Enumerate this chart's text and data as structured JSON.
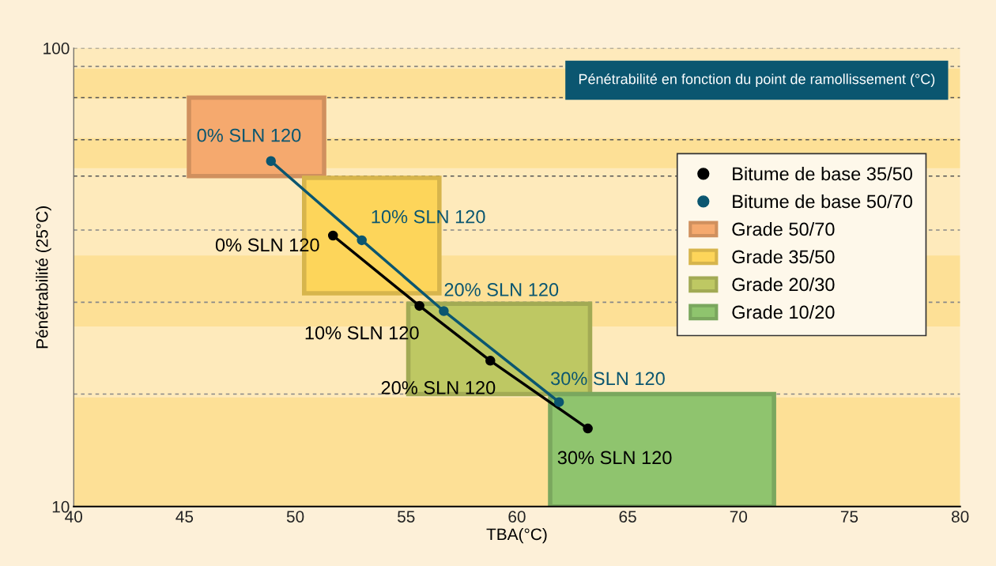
{
  "chart_data": {
    "type": "line",
    "title": "Pénétrabilité en fonction du point de ramollissement (°C)",
    "xlabel": "TBA(°C)",
    "ylabel": "Pénétrabilité (25°C)",
    "log": "y",
    "xlim": [
      40,
      80
    ],
    "xticks": [
      40,
      45,
      50,
      55,
      60,
      65,
      70,
      75,
      80
    ],
    "ylim": [
      10,
      100
    ],
    "yticks": [
      10,
      100
    ],
    "grid": false,
    "legend": "top right",
    "line_style": "solid",
    "series": [
      {
        "type": "area",
        "name": "Grade 50/70",
        "color": "#f5a96e",
        "x": [
          45.2,
          45.2,
          51.3,
          51.3,
          45.2
        ],
        "values": [
          52.6,
          78,
          78,
          52.6,
          52.6
        ]
      },
      {
        "type": "area",
        "name": "Grade 35/50",
        "color": "#fdd55a",
        "x": [
          50.4,
          50.4,
          56.5,
          56.5,
          50.4
        ],
        "values": [
          29.2,
          52.1,
          52.1,
          29.2,
          29.2
        ]
      },
      {
        "type": "area",
        "name": "Grade 20/30",
        "color": "#bec863",
        "x": [
          55.1,
          55.1,
          63.3,
          63.3,
          55.1
        ],
        "values": [
          17.6,
          27.7,
          27.7,
          17.6,
          17.6
        ]
      },
      {
        "type": "area",
        "name": "Grade 10/20",
        "color": "#8fc46e",
        "x": [
          61.5,
          61.5,
          71.6,
          71.6,
          61.5
        ],
        "values": [
          10,
          17.6,
          17.6,
          10,
          10
        ]
      },
      {
        "name": "Bitume de base 35/50",
        "marker": "circle",
        "color": "#000000",
        "x": [
          51.7,
          55.6,
          58.8,
          63.2
        ],
        "values": [
          39.0,
          27.4,
          20.8,
          14.8
        ]
      },
      {
        "name": "Bitume de base 50/70",
        "marker": "circle",
        "color": "#0b5670",
        "x": [
          48.9,
          53.0,
          56.7,
          61.9
        ],
        "values": [
          56.7,
          38.1,
          26.7,
          16.9
        ]
      }
    ],
    "annotations": [
      {
        "text": "0% SLN 120",
        "x": 51.7,
        "y": 39.0
      },
      {
        "text": "10% SLN 120",
        "x": 55.6,
        "y": 27.4
      },
      {
        "text": "20% SLN 120",
        "x": 58.8,
        "y": 20.8
      },
      {
        "text": "30% SLN 120",
        "x": 63.2,
        "y": 14.8
      },
      {
        "text": "0% SLN 120",
        "x": 48.9,
        "y": 56.7
      },
      {
        "text": "10% SLN 120",
        "x": 53.0,
        "y": 38.1
      },
      {
        "text": "20% SLN 120",
        "x": 56.7,
        "y": 26.7
      },
      {
        "text": "30% SLN 120",
        "x": 61.9,
        "y": 16.9
      }
    ],
    "bands": [
      {
        "axis": "y",
        "from": 10,
        "to": 100,
        "color": "#feeabb"
      },
      {
        "axis": "y",
        "from": 77.6,
        "to": 90.2,
        "color": "#fde096"
      },
      {
        "axis": "y",
        "from": 54.7,
        "to": 63.6,
        "color": "#fde096"
      },
      {
        "axis": "y",
        "from": 24.7,
        "to": 35.3,
        "color": "#fde096"
      },
      {
        "axis": "y",
        "from": 10,
        "to": 17.3,
        "color": "#fde096"
      }
    ],
    "ref_lines": [
      {
        "axis": "y",
        "value": 100,
        "color": "#777777",
        "line_style": "dashed"
      },
      {
        "axis": "y",
        "value": 91.2,
        "color": "#777777",
        "line_style": "dashed"
      },
      {
        "axis": "y",
        "value": 78,
        "color": "#555555",
        "line_style": "dashed"
      },
      {
        "axis": "y",
        "value": 63.1,
        "color": "#555555",
        "line_style": "dashed"
      },
      {
        "axis": "y",
        "value": 52.6,
        "color": "#555555",
        "line_style": "dashed"
      },
      {
        "axis": "y",
        "value": 40.1,
        "color": "#888888",
        "line_style": "dashed"
      },
      {
        "axis": "y",
        "value": 27.9,
        "color": "#888888",
        "line_style": "dashed"
      },
      {
        "axis": "y",
        "value": 17.6,
        "color": "#888888",
        "line_style": "dashed"
      }
    ]
  }
}
